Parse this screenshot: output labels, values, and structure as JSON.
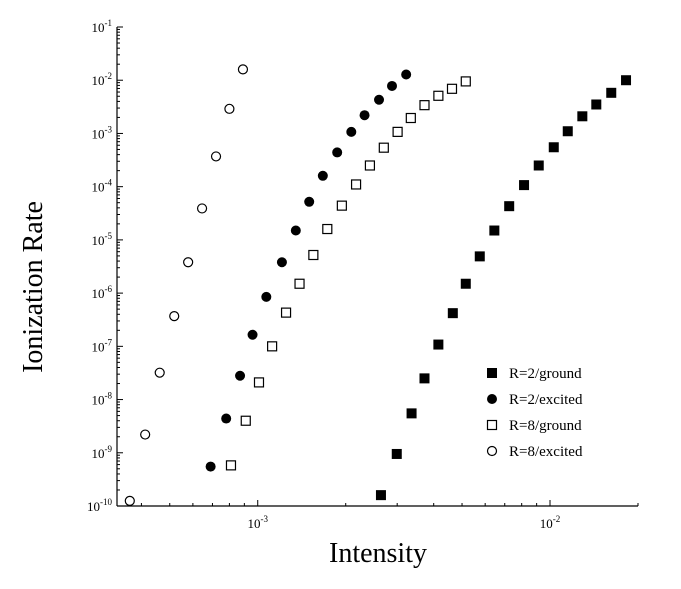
{
  "chart_data": {
    "type": "scatter",
    "title": "",
    "xlabel": "Intensity",
    "ylabel": "Ionization Rate",
    "xscale": "log",
    "yscale": "log",
    "xlim": [
      0.00033,
      0.02
    ],
    "ylim": [
      1e-10,
      0.1
    ],
    "grid": false,
    "legend_position": "bottom-right",
    "x_tick_labels": [
      {
        "value": 0.001,
        "base": "10",
        "exp": "-3"
      },
      {
        "value": 0.01,
        "base": "10",
        "exp": "-2"
      }
    ],
    "y_tick_labels": [
      {
        "value": 1e-10,
        "base": "10",
        "exp": "-10"
      },
      {
        "value": 1e-09,
        "base": "10",
        "exp": "-9"
      },
      {
        "value": 1e-08,
        "base": "10",
        "exp": "-8"
      },
      {
        "value": 1e-07,
        "base": "10",
        "exp": "-7"
      },
      {
        "value": 1e-06,
        "base": "10",
        "exp": "-6"
      },
      {
        "value": 1e-05,
        "base": "10",
        "exp": "-5"
      },
      {
        "value": 0.0001,
        "base": "10",
        "exp": "-4"
      },
      {
        "value": 0.001,
        "base": "10",
        "exp": "-3"
      },
      {
        "value": 0.01,
        "base": "10",
        "exp": "-2"
      },
      {
        "value": 0.1,
        "base": "10",
        "exp": "-1"
      }
    ],
    "series": [
      {
        "name": "R=2/ground",
        "marker": "filled-square",
        "points": [
          [
            0.00264,
            1.6e-10
          ],
          [
            0.00299,
            9.5e-10
          ],
          [
            0.00336,
            5.5e-09
          ],
          [
            0.00372,
            2.5e-08
          ],
          [
            0.00415,
            1.08e-07
          ],
          [
            0.00465,
            4.2e-07
          ],
          [
            0.00515,
            1.5e-06
          ],
          [
            0.00575,
            4.9e-06
          ],
          [
            0.00645,
            1.5e-05
          ],
          [
            0.00725,
            4.3e-05
          ],
          [
            0.00815,
            0.000107
          ],
          [
            0.00915,
            0.00025
          ],
          [
            0.0103,
            0.00055
          ],
          [
            0.0115,
            0.0011
          ],
          [
            0.0129,
            0.0021
          ],
          [
            0.0144,
            0.0035
          ],
          [
            0.0162,
            0.0058
          ],
          [
            0.0182,
            0.01
          ]
        ]
      },
      {
        "name": "R=2/excited",
        "marker": "filled-circle",
        "points": [
          [
            0.00069,
            5.5e-10
          ],
          [
            0.00078,
            4.4e-09
          ],
          [
            0.00087,
            2.8e-08
          ],
          [
            0.00096,
            1.65e-07
          ],
          [
            0.00107,
            8.5e-07
          ],
          [
            0.00121,
            3.8e-06
          ],
          [
            0.00135,
            1.5e-05
          ],
          [
            0.0015,
            5.2e-05
          ],
          [
            0.00167,
            0.00016
          ],
          [
            0.00187,
            0.00044
          ],
          [
            0.00209,
            0.00107
          ],
          [
            0.00232,
            0.0022
          ],
          [
            0.0026,
            0.0043
          ],
          [
            0.00288,
            0.0078
          ],
          [
            0.00322,
            0.0128
          ]
        ]
      },
      {
        "name": "R=8/ground",
        "marker": "open-square",
        "points": [
          [
            0.00081,
            5.8e-10
          ],
          [
            0.00091,
            4e-09
          ],
          [
            0.00101,
            2.1e-08
          ],
          [
            0.00112,
            1e-07
          ],
          [
            0.00125,
            4.3e-07
          ],
          [
            0.00139,
            1.5e-06
          ],
          [
            0.00155,
            5.2e-06
          ],
          [
            0.00173,
            1.6e-05
          ],
          [
            0.00194,
            4.4e-05
          ],
          [
            0.00217,
            0.00011
          ],
          [
            0.00242,
            0.00025
          ],
          [
            0.0027,
            0.00054
          ],
          [
            0.00301,
            0.00107
          ],
          [
            0.00334,
            0.00195
          ],
          [
            0.00372,
            0.0034
          ],
          [
            0.00415,
            0.0051
          ],
          [
            0.00462,
            0.0069
          ],
          [
            0.00515,
            0.0095
          ]
        ]
      },
      {
        "name": "R=8/excited",
        "marker": "open-circle",
        "points": [
          [
            0.000365,
            1.25e-10
          ],
          [
            0.000412,
            2.2e-09
          ],
          [
            0.000462,
            3.2e-08
          ],
          [
            0.000518,
            3.7e-07
          ],
          [
            0.000578,
            3.8e-06
          ],
          [
            0.000645,
            3.9e-05
          ],
          [
            0.00072,
            0.00037
          ],
          [
            0.0008,
            0.0029
          ],
          [
            0.00089,
            0.016
          ]
        ]
      }
    ]
  }
}
